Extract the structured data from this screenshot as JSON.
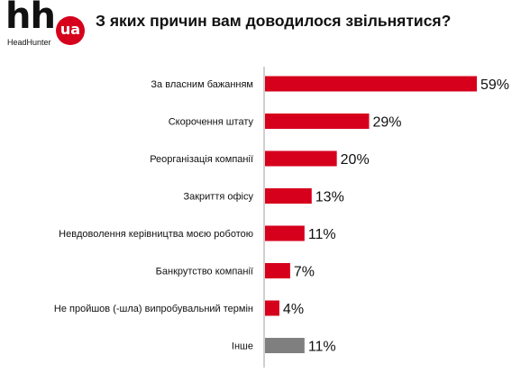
{
  "logo": {
    "main": "hh",
    "badge": "ua",
    "sub": "HeadHunter"
  },
  "colors": {
    "primary_bar": "#d6001c",
    "other_bar": "#7f7f7f",
    "axis": "#bfbfbf",
    "brand": "#d6001c"
  },
  "chart_data": {
    "type": "bar",
    "orientation": "horizontal",
    "title": "З яких причин вам доводилося звільнятися?",
    "categories": [
      "За власним бажанням",
      "Скорочення штату",
      "Реорганізація компанії",
      "Закриття офісу",
      "Невдоволення керівництва моєю роботою",
      "Банкрутство компанії",
      "Не пройшов (-шла) випробувальний термін",
      "Інше"
    ],
    "values": [
      59,
      29,
      20,
      13,
      11,
      7,
      4,
      11
    ],
    "value_labels": [
      "59%",
      "29%",
      "20%",
      "13%",
      "11%",
      "7%",
      "4%",
      "11%"
    ],
    "bar_colors": [
      "#d6001c",
      "#d6001c",
      "#d6001c",
      "#d6001c",
      "#d6001c",
      "#d6001c",
      "#d6001c",
      "#7f7f7f"
    ],
    "unit": "%",
    "xlim": [
      0,
      59
    ],
    "grid": false,
    "legend": "none"
  }
}
